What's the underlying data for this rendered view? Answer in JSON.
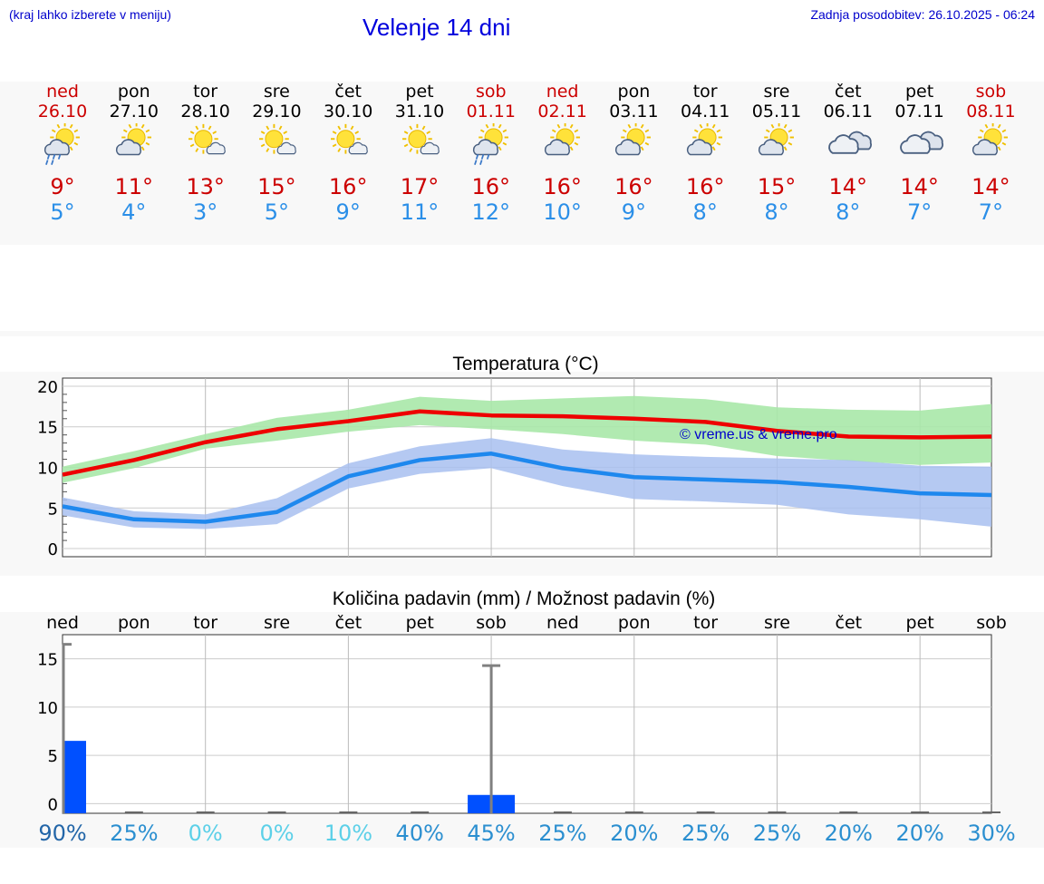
{
  "header": {
    "hint": "(kraj lahko izberete v meniju)",
    "title": "Velenje 14 dni",
    "updated": "Zadnja posodobitev: 26.10.2025 - 06:24"
  },
  "days": [
    {
      "name": "ned",
      "date": "26.10",
      "weekend": true,
      "icon": "partly-sunny-rain-icon",
      "max": "9°",
      "min": "5°"
    },
    {
      "name": "pon",
      "date": "27.10",
      "weekend": false,
      "icon": "partly-sunny-icon",
      "max": "11°",
      "min": "4°"
    },
    {
      "name": "tor",
      "date": "28.10",
      "weekend": false,
      "icon": "sun-small-cloud-icon",
      "max": "13°",
      "min": "3°"
    },
    {
      "name": "sre",
      "date": "29.10",
      "weekend": false,
      "icon": "sun-small-cloud-icon",
      "max": "15°",
      "min": "5°"
    },
    {
      "name": "čet",
      "date": "30.10",
      "weekend": false,
      "icon": "sun-small-cloud-icon",
      "max": "16°",
      "min": "9°"
    },
    {
      "name": "pet",
      "date": "31.10",
      "weekend": false,
      "icon": "sun-small-cloud-icon",
      "max": "17°",
      "min": "11°"
    },
    {
      "name": "sob",
      "date": "01.11",
      "weekend": true,
      "icon": "partly-sunny-rain-icon",
      "max": "16°",
      "min": "12°"
    },
    {
      "name": "ned",
      "date": "02.11",
      "weekend": true,
      "icon": "partly-sunny-icon",
      "max": "16°",
      "min": "10°"
    },
    {
      "name": "pon",
      "date": "03.11",
      "weekend": false,
      "icon": "partly-sunny-icon",
      "max": "16°",
      "min": "9°"
    },
    {
      "name": "tor",
      "date": "04.11",
      "weekend": false,
      "icon": "partly-sunny-icon",
      "max": "16°",
      "min": "8°"
    },
    {
      "name": "sre",
      "date": "05.11",
      "weekend": false,
      "icon": "partly-sunny-icon",
      "max": "15°",
      "min": "8°"
    },
    {
      "name": "čet",
      "date": "06.11",
      "weekend": false,
      "icon": "cloudy-icon",
      "max": "14°",
      "min": "8°"
    },
    {
      "name": "pet",
      "date": "07.11",
      "weekend": false,
      "icon": "cloudy-icon",
      "max": "14°",
      "min": "7°"
    },
    {
      "name": "sob",
      "date": "08.11",
      "weekend": true,
      "icon": "partly-sunny-icon",
      "max": "14°",
      "min": "7°"
    }
  ],
  "colors": {
    "max": "#ee0000",
    "min": "#1e88ee",
    "maxBand": "#a8e8a8",
    "minBand": "#a8c0f0",
    "bar": "#0050ff",
    "whisker": "#808080",
    "weekend": "#cc0000",
    "watermark": "#0000cc"
  },
  "chart_data": [
    {
      "type": "line",
      "title": "Temperatura (°C)",
      "ylim": [
        -1,
        21
      ],
      "yticks": [
        0,
        5,
        10,
        15,
        20
      ],
      "watermark": "© vreme.us & vreme.pro",
      "x": [
        0,
        1,
        2,
        3,
        4,
        5,
        6,
        7,
        8,
        9,
        10,
        11,
        12,
        13
      ],
      "series": [
        {
          "name": "max",
          "values": [
            9.1,
            10.9,
            13.1,
            14.7,
            15.7,
            16.9,
            16.4,
            16.3,
            16.0,
            15.6,
            14.5,
            13.8,
            13.7,
            13.8
          ]
        },
        {
          "name": "max-range-high",
          "values": [
            10.1,
            12.0,
            14.1,
            16.1,
            17.1,
            18.7,
            18.2,
            18.5,
            18.8,
            18.4,
            17.4,
            17.1,
            17.0,
            17.8
          ]
        },
        {
          "name": "max-range-low",
          "values": [
            8.1,
            9.9,
            12.3,
            13.3,
            14.4,
            15.2,
            14.7,
            14.1,
            13.3,
            12.8,
            11.4,
            10.8,
            10.3,
            10.6
          ]
        },
        {
          "name": "min",
          "values": [
            5.2,
            3.6,
            3.3,
            4.5,
            8.9,
            10.9,
            11.7,
            9.9,
            8.8,
            8.5,
            8.2,
            7.6,
            6.8,
            6.6
          ]
        },
        {
          "name": "min-range-high",
          "values": [
            6.3,
            4.6,
            4.2,
            6.2,
            10.5,
            12.6,
            13.6,
            12.2,
            11.6,
            11.3,
            11.1,
            10.9,
            10.2,
            10.1
          ]
        },
        {
          "name": "min-range-low",
          "values": [
            4.1,
            2.6,
            2.4,
            3.0,
            7.4,
            9.2,
            9.9,
            7.7,
            6.1,
            5.8,
            5.4,
            4.2,
            3.6,
            2.7
          ]
        }
      ]
    },
    {
      "type": "bar",
      "title": "Količina padavin (mm) / Možnost padavin (%)",
      "ylim": [
        -1,
        17.5
      ],
      "yticks": [
        0,
        5,
        10,
        15
      ],
      "categories": [
        "ned",
        "pon",
        "tor",
        "sre",
        "čet",
        "pet",
        "sob",
        "ned",
        "pon",
        "tor",
        "sre",
        "čet",
        "pet",
        "sob"
      ],
      "values": [
        6.5,
        0,
        0,
        0,
        0,
        0,
        0.9,
        0,
        0,
        0,
        0,
        0,
        0,
        0
      ],
      "whisker_max": [
        16.5,
        0,
        0,
        0,
        0,
        0,
        14.3,
        0,
        0,
        0,
        0,
        0,
        0,
        0
      ],
      "chance": [
        "90%",
        "25%",
        "0%",
        "0%",
        "10%",
        "40%",
        "45%",
        "25%",
        "20%",
        "25%",
        "25%",
        "20%",
        "20%",
        "30%"
      ],
      "chance_colors": [
        "#2366a8",
        "#2b8fd0",
        "#5cd0e8",
        "#5cd0e8",
        "#5cd0e8",
        "#2b8fd0",
        "#2b8fd0",
        "#2b8fd0",
        "#2b8fd0",
        "#2b8fd0",
        "#2b8fd0",
        "#2b8fd0",
        "#2b8fd0",
        "#2b8fd0"
      ]
    }
  ]
}
